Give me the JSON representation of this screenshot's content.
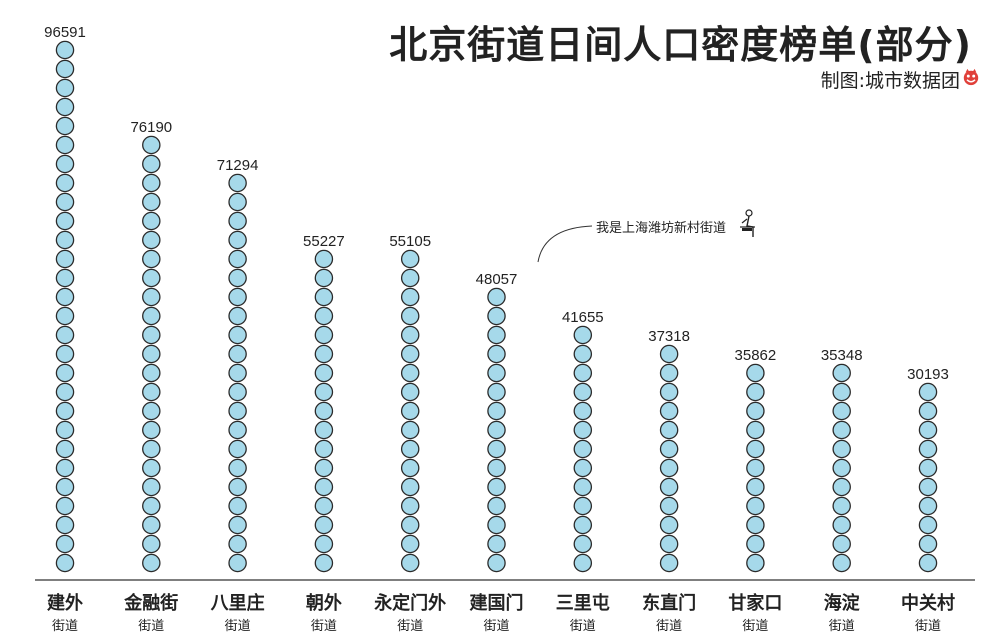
{
  "header": {
    "title": "北京街道日间人口密度榜单(部分)",
    "credit": "制图:城市数据团",
    "credit_icon": "devil-face-icon"
  },
  "annotation": {
    "text": "我是上海潍坊新村街道",
    "figure_icon": "person-sitting-icon"
  },
  "colors": {
    "bead_fill": "#a6d9ea",
    "bead_stroke": "#2b2b2b",
    "axis": "#333333",
    "text": "#222222",
    "icon_red": "#e0403a"
  },
  "chart_data": {
    "type": "bar",
    "title": "北京街道日间人口密度榜单(部分)",
    "categories": [
      "建外",
      "金融街",
      "八里庄",
      "朝外",
      "永定门外",
      "建国门",
      "三里屯",
      "东直门",
      "甘家口",
      "海淀",
      "中关村"
    ],
    "category_sublabel": "街道",
    "values": [
      96591,
      76190,
      71294,
      55227,
      55105,
      48057,
      41655,
      37318,
      35862,
      35348,
      30193
    ],
    "ylim": [
      0,
      100000
    ],
    "grid": false,
    "legend": "none"
  }
}
